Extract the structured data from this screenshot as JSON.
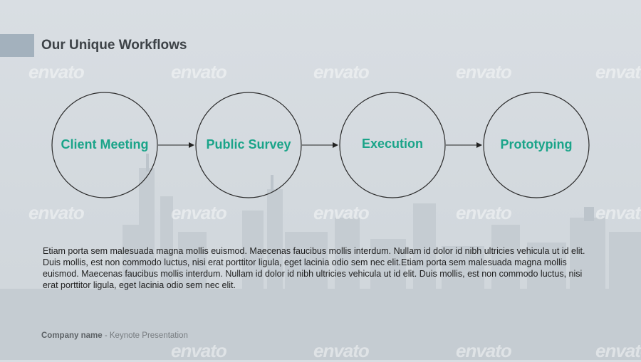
{
  "slide": {
    "title": "Our Unique Workflows",
    "accent_color": "#a3b1bd",
    "node_color": "#1aa489",
    "workflow": [
      {
        "label": "Client Meeting"
      },
      {
        "label": "Public Survey"
      },
      {
        "label": "Execution"
      },
      {
        "label": "Prototyping"
      }
    ],
    "body": "Etiam porta sem malesuada magna mollis euismod. Maecenas faucibus mollis interdum. Nullam id dolor id nibh ultricies vehicula ut id elit. Duis mollis, est non commodo luctus, nisi erat porttitor ligula, eget lacinia odio sem nec elit.Etiam porta sem malesuada magna mollis euismod. Maecenas faucibus mollis interdum. Nullam id dolor id nibh ultricies vehicula ut id elit. Duis mollis, est non commodo luctus, nisi erat porttitor ligula, eget lacinia odio sem nec elit.",
    "footer": {
      "company": "Company name",
      "separator": " - ",
      "subtitle": "Keynote Presentation"
    },
    "watermark": "envato"
  }
}
